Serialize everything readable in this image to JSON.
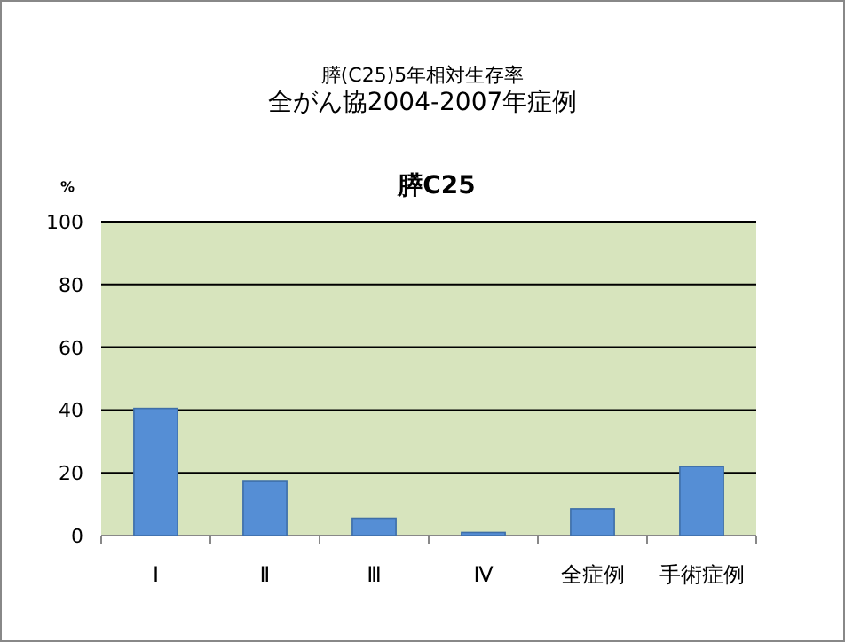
{
  "chart_data": {
    "type": "bar",
    "title": "膵(C25)5年相対生存率",
    "subtitle": "全がん協2004-2007年症例",
    "annotations": [
      "膵C25"
    ],
    "ylabel": "%",
    "categories": [
      "Ⅰ",
      "Ⅱ",
      "Ⅲ",
      "Ⅳ",
      "全症例",
      "手術症例"
    ],
    "values": [
      40.5,
      17.5,
      5.5,
      1,
      8.5,
      22
    ],
    "color": "#558ed5",
    "ylim": [
      0,
      100
    ],
    "yticks": [
      0,
      20,
      40,
      60,
      80,
      100
    ],
    "grid": "y"
  }
}
